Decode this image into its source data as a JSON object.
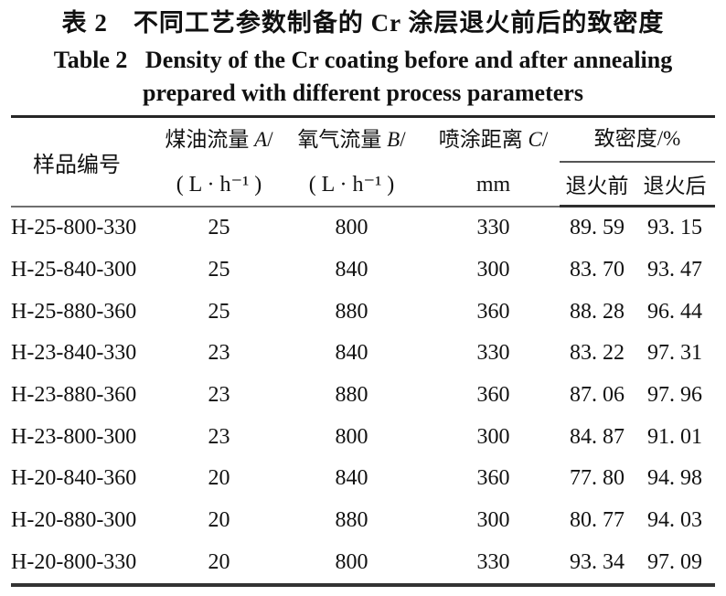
{
  "title": {
    "zh": "表 2　不同工艺参数制备的 Cr 涂层退火前后的致密度",
    "en_line1": "Table 2   Density of the Cr coating before and after annealing",
    "en_line2": "prepared with different process parameters"
  },
  "table": {
    "headers": {
      "sample": "样品编号",
      "kerosene": {
        "line1_prefix": "煤油流量 ",
        "var": "A",
        "line1_suffix": "/",
        "line2": "( L · h⁻¹ )"
      },
      "oxygen": {
        "line1_prefix": "氧气流量 ",
        "var": "B",
        "line1_suffix": "/",
        "line2": "( L · h⁻¹ )"
      },
      "distance": {
        "line1_prefix": "喷涂距离 ",
        "var": "C",
        "line1_suffix": "/",
        "line2": "mm"
      },
      "density_group": {
        "label": "致密度/%",
        "before": "退火前",
        "after": "退火后"
      }
    },
    "rows": [
      {
        "sample": "H-25-800-330",
        "kerosene": "25",
        "oxygen": "800",
        "distance": "330",
        "before": "89. 59",
        "after": "93. 15"
      },
      {
        "sample": "H-25-840-300",
        "kerosene": "25",
        "oxygen": "840",
        "distance": "300",
        "before": "83. 70",
        "after": "93. 47"
      },
      {
        "sample": "H-25-880-360",
        "kerosene": "25",
        "oxygen": "880",
        "distance": "360",
        "before": "88. 28",
        "after": "96. 44"
      },
      {
        "sample": "H-23-840-330",
        "kerosene": "23",
        "oxygen": "840",
        "distance": "330",
        "before": "83. 22",
        "after": "97. 31"
      },
      {
        "sample": "H-23-880-360",
        "kerosene": "23",
        "oxygen": "880",
        "distance": "360",
        "before": "87. 06",
        "after": "97. 96"
      },
      {
        "sample": "H-23-800-300",
        "kerosene": "23",
        "oxygen": "800",
        "distance": "300",
        "before": "84. 87",
        "after": "91. 01"
      },
      {
        "sample": "H-20-840-360",
        "kerosene": "20",
        "oxygen": "840",
        "distance": "360",
        "before": "77. 80",
        "after": "94. 98"
      },
      {
        "sample": "H-20-880-300",
        "kerosene": "20",
        "oxygen": "880",
        "distance": "300",
        "before": "80. 77",
        "after": "94. 03"
      },
      {
        "sample": "H-20-800-330",
        "kerosene": "20",
        "oxygen": "800",
        "distance": "330",
        "before": "93. 34",
        "after": "97. 09"
      }
    ]
  },
  "colors": {
    "text": "#111111",
    "rule_heavy": "#262626",
    "rule_light": "#6e6e6e"
  }
}
